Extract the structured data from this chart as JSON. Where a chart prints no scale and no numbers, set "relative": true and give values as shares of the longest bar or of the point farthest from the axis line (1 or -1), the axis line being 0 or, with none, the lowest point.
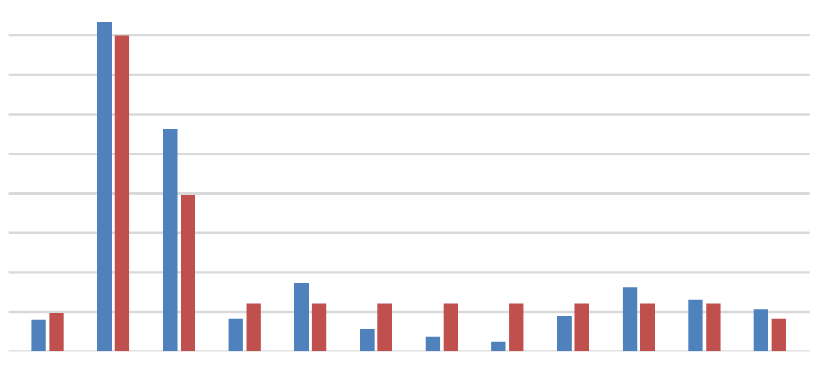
{
  "chart_data": {
    "type": "bar",
    "relative": true,
    "grid": "y",
    "legend": false,
    "categories": [
      null,
      null,
      null,
      null,
      null,
      null,
      null,
      null,
      null,
      null,
      null,
      null
    ],
    "series": [
      {
        "color": "#4f81bd",
        "values": [
          0.096,
          1,
          0.675,
          0.1,
          0.208,
          0.067,
          0.046,
          0.029,
          0.108,
          0.196,
          0.158,
          0.129
        ]
      },
      {
        "color": "#c0504d",
        "values": [
          0.117,
          0.958,
          0.475,
          0.146,
          0.146,
          0.146,
          0.146,
          0.146,
          0.146,
          0.146,
          0.146,
          0.1
        ]
      }
    ]
  }
}
